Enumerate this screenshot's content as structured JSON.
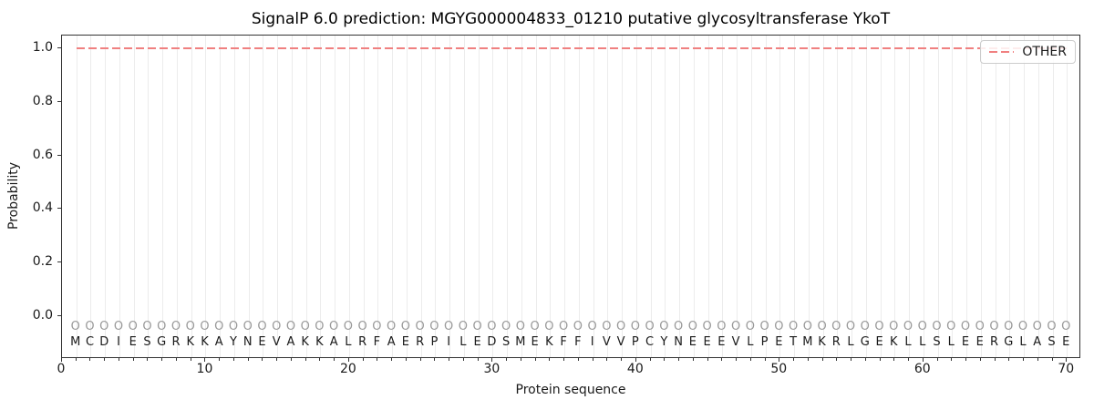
{
  "chart_data": {
    "type": "line",
    "title": "SignalP 6.0 prediction: MGYG000004833_01210 putative glycosyltransferase YkoT",
    "xlabel": "Protein sequence",
    "ylabel": "Probability",
    "xlim": [
      0,
      71
    ],
    "ylim": [
      -0.16,
      1.05
    ],
    "x_ticks": [
      0,
      10,
      20,
      30,
      40,
      50,
      60,
      70
    ],
    "y_ticks": [
      "1.0",
      "0.8",
      "0.6",
      "0.4",
      "0.2",
      "0.0"
    ],
    "grid": "vertical gridline at every residue position",
    "legend": {
      "position": "upper right",
      "entries": [
        {
          "label": "OTHER",
          "color": "#f08080",
          "linestyle": "dashed"
        }
      ]
    },
    "series": [
      {
        "name": "OTHER",
        "linestyle": "dashed",
        "color": "#f08080",
        "x": [
          1,
          70
        ],
        "y": [
          1.0,
          1.0
        ],
        "description": "constant probability 1.0 across all 70 residues"
      }
    ],
    "sequence": "MCDIESGRKKAYNEVAKKALRFAERPILEDSMEKFFIVVPCYNEEEVLPETMKRLGEKLLSLEERGLASE",
    "per_position_label": "O",
    "n_positions": 70,
    "colors": {
      "line": "#f08080",
      "grid": "#ececec",
      "position_marker": "#999999",
      "sequence_text": "#1a1a1a"
    }
  }
}
